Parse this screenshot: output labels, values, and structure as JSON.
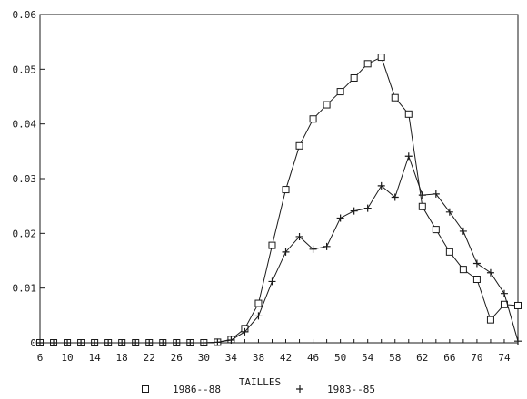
{
  "chart_data": {
    "type": "line",
    "title": "",
    "xlabel": "TAILLES",
    "ylabel": "",
    "xlim": [
      6,
      76
    ],
    "ylim": [
      0,
      0.06
    ],
    "x_ticks": [
      6,
      10,
      14,
      18,
      22,
      26,
      30,
      34,
      38,
      42,
      46,
      50,
      54,
      58,
      62,
      66,
      70,
      74
    ],
    "y_ticks": [
      0,
      0.01,
      0.02,
      0.03,
      0.04,
      0.05,
      0.06
    ],
    "y_tick_labels": [
      "0",
      "0.01",
      "0.02",
      "0.03",
      "0.04",
      "0.05",
      "0.06"
    ],
    "grid": false,
    "legend_position": "bottom",
    "x": [
      6,
      8,
      10,
      12,
      14,
      16,
      18,
      20,
      22,
      24,
      26,
      28,
      30,
      32,
      34,
      36,
      38,
      40,
      42,
      44,
      46,
      48,
      50,
      52,
      54,
      56,
      58,
      60,
      62,
      64,
      66,
      68,
      70,
      72,
      74,
      76
    ],
    "series": [
      {
        "name": "1986--88",
        "marker": "square",
        "values": [
          0,
          0,
          0,
          0,
          0,
          0,
          0,
          0,
          0,
          0,
          0,
          0,
          0,
          0.0001,
          0.0006,
          0.0026,
          0.0072,
          0.0178,
          0.028,
          0.036,
          0.0409,
          0.0435,
          0.0459,
          0.0484,
          0.051,
          0.0522,
          0.0448,
          0.0418,
          0.0249,
          0.0207,
          0.0166,
          0.0134,
          0.0116,
          0.0042,
          0.007,
          0.0068
        ]
      },
      {
        "name": "1983--85",
        "marker": "plus",
        "values": [
          0,
          0,
          0,
          0,
          0,
          0,
          0,
          0,
          0,
          0,
          0,
          0,
          0,
          0.0001,
          0.0005,
          0.002,
          0.0049,
          0.0112,
          0.0166,
          0.0194,
          0.0171,
          0.0176,
          0.0228,
          0.0241,
          0.0246,
          0.0287,
          0.0266,
          0.0341,
          0.027,
          0.0272,
          0.0239,
          0.0204,
          0.0145,
          0.0128,
          0.009,
          0.0003
        ]
      }
    ]
  }
}
